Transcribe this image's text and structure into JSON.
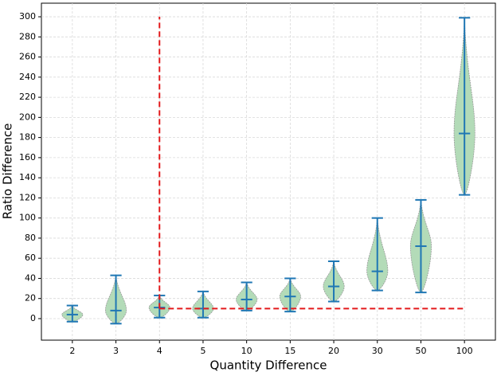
{
  "chart_data": {
    "type": "violin",
    "xlabel": "Quantity Difference",
    "ylabel": "Ratio Difference",
    "categories": [
      "2",
      "3",
      "4",
      "5",
      "10",
      "15",
      "20",
      "30",
      "50",
      "100"
    ],
    "min": [
      -3,
      -5,
      1,
      1,
      8,
      7,
      17,
      28,
      26,
      123
    ],
    "median": [
      4,
      8,
      11,
      10,
      19,
      22,
      32,
      47,
      72,
      184
    ],
    "max": [
      13,
      43,
      23,
      27,
      36,
      40,
      57,
      100,
      118,
      299
    ],
    "body_color": "#b3dbb8",
    "line_color": "#1f77b4",
    "ylim": [
      -21.4,
      313.5
    ],
    "yticks": [
      0,
      20,
      40,
      60,
      80,
      100,
      120,
      140,
      160,
      180,
      200,
      220,
      240,
      260,
      280,
      300
    ],
    "grid": true,
    "reference_lines": {
      "x_category": 2,
      "y": 10,
      "y_top": 300,
      "color": "#e31a1c"
    }
  }
}
